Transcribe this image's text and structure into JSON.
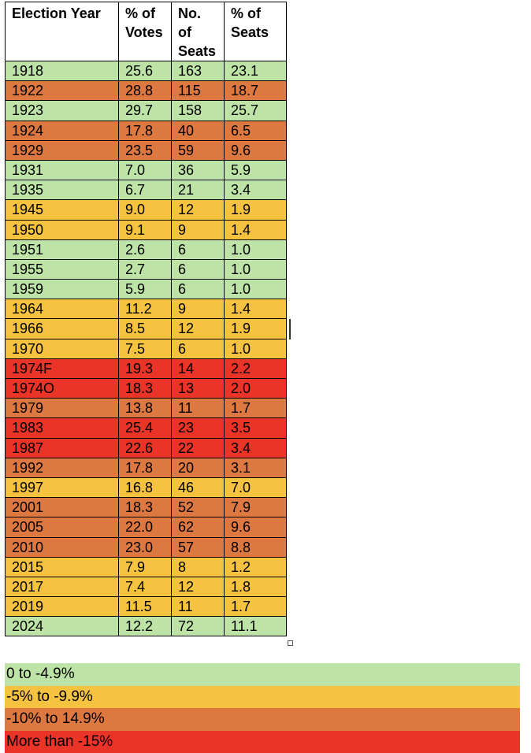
{
  "colors": {
    "green": "#bde3a6",
    "yellow": "#f6c340",
    "orange": "#de7841",
    "red": "#ea3428"
  },
  "table": {
    "headers": {
      "year": [
        "Election Year"
      ],
      "votes": [
        "% of",
        "Votes"
      ],
      "seats": [
        "No.",
        "of",
        "Seats"
      ],
      "seat_pct": [
        "% of",
        "Seats"
      ]
    },
    "rows": [
      {
        "year": "1918",
        "votes": "25.6",
        "seats": "163",
        "seat_pct": "23.1",
        "color": "green"
      },
      {
        "year": "1922",
        "votes": "28.8",
        "seats": "115",
        "seat_pct": "18.7",
        "color": "orange"
      },
      {
        "year": "1923",
        "votes": "29.7",
        "seats": "158",
        "seat_pct": "25.7",
        "color": "green"
      },
      {
        "year": "1924",
        "votes": "17.8",
        "seats": "40",
        "seat_pct": "6.5",
        "color": "orange"
      },
      {
        "year": "1929",
        "votes": "23.5",
        "seats": "59",
        "seat_pct": "9.6",
        "color": "orange"
      },
      {
        "year": "1931",
        "votes": "7.0",
        "seats": "36",
        "seat_pct": "5.9",
        "color": "green"
      },
      {
        "year": "1935",
        "votes": "6.7",
        "seats": "21",
        "seat_pct": "3.4",
        "color": "green"
      },
      {
        "year": "1945",
        "votes": "9.0",
        "seats": "12",
        "seat_pct": "1.9",
        "color": "yellow"
      },
      {
        "year": "1950",
        "votes": "9.1",
        "seats": "9",
        "seat_pct": "1.4",
        "color": "yellow"
      },
      {
        "year": "1951",
        "votes": "2.6",
        "seats": "6",
        "seat_pct": "1.0",
        "color": "green"
      },
      {
        "year": "1955",
        "votes": "2.7",
        "seats": "6",
        "seat_pct": "1.0",
        "color": "green"
      },
      {
        "year": "1959",
        "votes": "5.9",
        "seats": "6",
        "seat_pct": "1.0",
        "color": "green"
      },
      {
        "year": "1964",
        "votes": "11.2",
        "seats": "9",
        "seat_pct": "1.4",
        "color": "yellow"
      },
      {
        "year": "1966",
        "votes": "8.5",
        "seats": "12",
        "seat_pct": "1.9",
        "color": "yellow"
      },
      {
        "year": "1970",
        "votes": "7.5",
        "seats": "6",
        "seat_pct": "1.0",
        "color": "yellow"
      },
      {
        "year": "1974F",
        "votes": "19.3",
        "seats": "14",
        "seat_pct": "2.2",
        "color": "red"
      },
      {
        "year": "1974O",
        "votes": "18.3",
        "seats": "13",
        "seat_pct": "2.0",
        "color": "red"
      },
      {
        "year": "1979",
        "votes": "13.8",
        "seats": "11",
        "seat_pct": "1.7",
        "color": "orange"
      },
      {
        "year": "1983",
        "votes": "25.4",
        "seats": "23",
        "seat_pct": "3.5",
        "color": "red"
      },
      {
        "year": "1987",
        "votes": "22.6",
        "seats": "22",
        "seat_pct": "3.4",
        "color": "red"
      },
      {
        "year": "1992",
        "votes": "17.8",
        "seats": "20",
        "seat_pct": "3.1",
        "color": "orange"
      },
      {
        "year": "1997",
        "votes": "16.8",
        "seats": "46",
        "seat_pct": "7.0",
        "color": "yellow"
      },
      {
        "year": "2001",
        "votes": "18.3",
        "seats": "52",
        "seat_pct": "7.9",
        "color": "orange"
      },
      {
        "year": "2005",
        "votes": "22.0",
        "seats": "62",
        "seat_pct": "9.6",
        "color": "orange"
      },
      {
        "year": "2010",
        "votes": "23.0",
        "seats": "57",
        "seat_pct": "8.8",
        "color": "orange"
      },
      {
        "year": "2015",
        "votes": "7.9",
        "seats": "8",
        "seat_pct": "1.2",
        "color": "yellow"
      },
      {
        "year": "2017",
        "votes": "7.4",
        "seats": "12",
        "seat_pct": "1.8",
        "color": "yellow"
      },
      {
        "year": "2019",
        "votes": "11.5",
        "seats": "11",
        "seat_pct": "1.7",
        "color": "yellow"
      },
      {
        "year": "2024",
        "votes": "12.2",
        "seats": "72",
        "seat_pct": "11.1",
        "color": "green"
      }
    ]
  },
  "legend": [
    {
      "label": "0 to -4.9%",
      "color": "green"
    },
    {
      "label": "-5% to -9.9%",
      "color": "yellow"
    },
    {
      "label": "-10% to 14.9%",
      "color": "orange"
    },
    {
      "label": "More than -15%",
      "color": "red"
    }
  ]
}
